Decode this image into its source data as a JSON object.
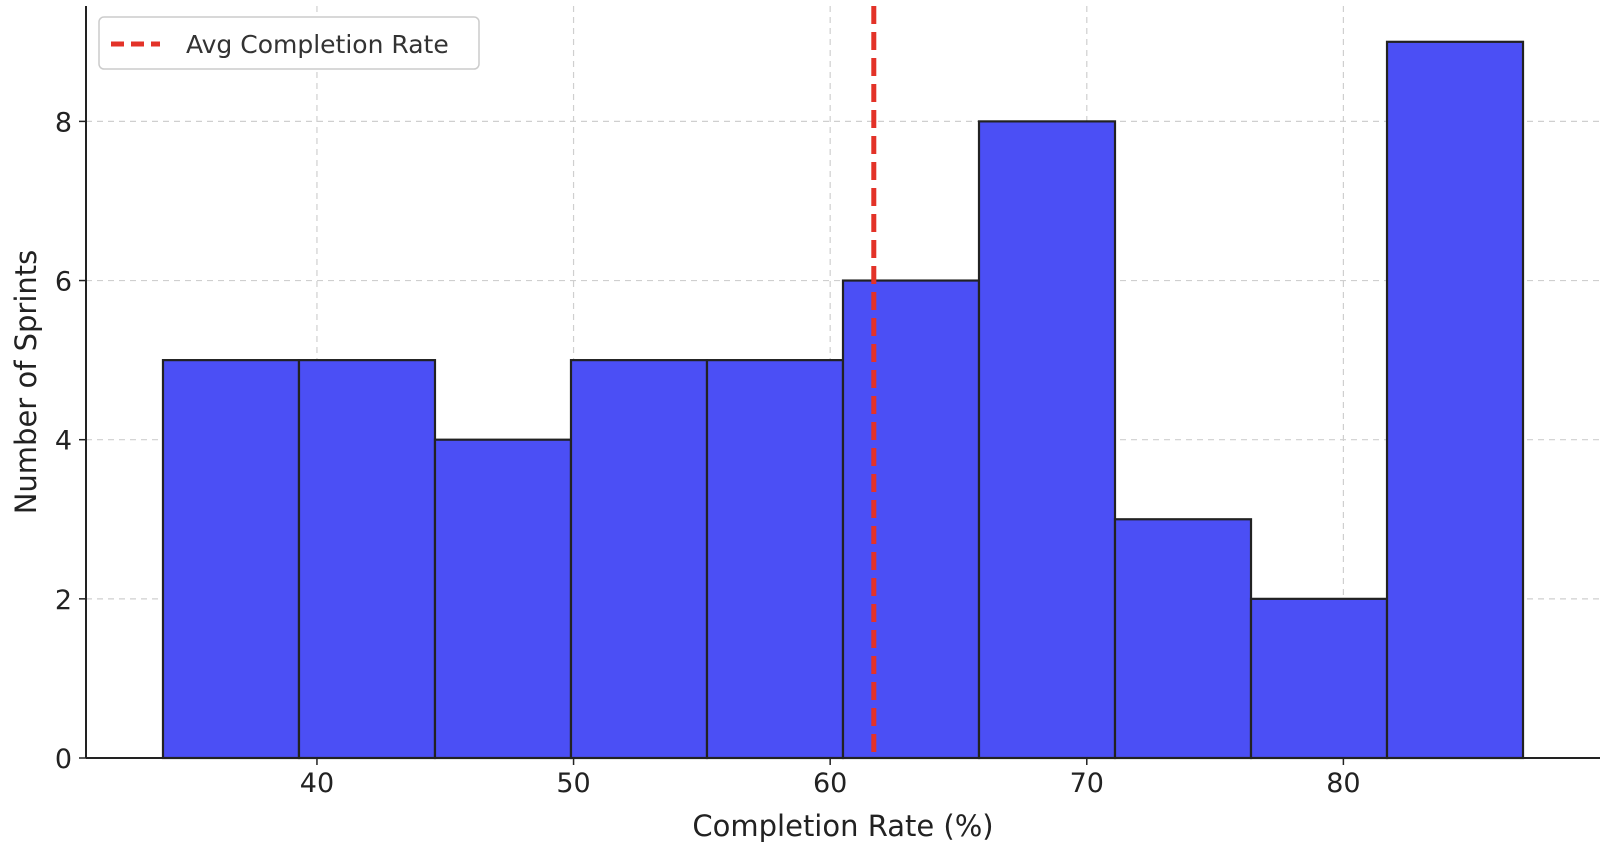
{
  "chart_data": {
    "type": "bar",
    "subtype": "histogram",
    "xlabel": "Completion Rate (%)",
    "ylabel": "Number of Sprints",
    "xlim": [
      31.0,
      90.0
    ],
    "ylim": [
      0,
      9.45
    ],
    "xticks": [
      40,
      50,
      60,
      70,
      80
    ],
    "yticks": [
      0,
      2,
      4,
      6,
      8
    ],
    "bin_edges": [
      34.0,
      39.3,
      44.6,
      49.9,
      55.2,
      60.5,
      65.8,
      71.1,
      76.4,
      81.7,
      87.0
    ],
    "values": [
      5,
      5,
      4,
      5,
      5,
      6,
      8,
      3,
      2,
      9
    ],
    "bar_color": "#4b4ff5",
    "edge_color": "#222222",
    "grid": true,
    "average_line": {
      "label": "Avg Completion Rate",
      "value": 61.7,
      "color": "#e33228",
      "style": "dashed"
    },
    "legend": {
      "position": "top-left",
      "entries": [
        "Avg Completion Rate"
      ]
    }
  }
}
